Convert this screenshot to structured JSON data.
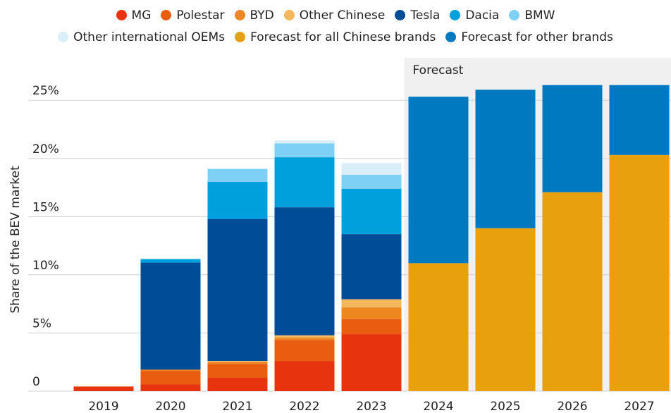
{
  "chart_data": {
    "type": "stacked_bar",
    "y_label": "Share of the BEV market",
    "annotation": "Forecast",
    "categories": [
      "2019",
      "2020",
      "2021",
      "2022",
      "2023",
      "2024",
      "2025",
      "2026",
      "2027"
    ],
    "series": [
      {
        "name": "MG",
        "color": "#e8340e",
        "values": [
          0.4,
          0.6,
          1.15,
          2.6,
          4.9,
          null,
          null,
          null,
          null
        ]
      },
      {
        "name": "Polestar",
        "color": "#e85d10",
        "values": [
          null,
          1.15,
          1.2,
          1.8,
          1.3,
          null,
          null,
          null,
          null
        ]
      },
      {
        "name": "BYD",
        "color": "#ec8722",
        "values": [
          null,
          0.1,
          0.15,
          0.2,
          1.0,
          null,
          null,
          null,
          null
        ]
      },
      {
        "name": "Other Chinese",
        "color": "#f4b85c",
        "values": [
          null,
          null,
          0.1,
          0.2,
          0.7,
          null,
          null,
          null,
          null
        ]
      },
      {
        "name": "Tesla",
        "color": "#004c97",
        "values": [
          null,
          9.2,
          12.2,
          11.0,
          5.6,
          null,
          null,
          null,
          null
        ]
      },
      {
        "name": "Dacia",
        "color": "#00a0dc",
        "values": [
          null,
          0.3,
          3.2,
          4.3,
          3.9,
          null,
          null,
          null,
          null
        ]
      },
      {
        "name": "BMW",
        "color": "#7fd0f5",
        "values": [
          null,
          null,
          1.1,
          1.2,
          1.2,
          null,
          null,
          null,
          null
        ]
      },
      {
        "name": "Other international OEMs",
        "color": "#d9eef8",
        "values": [
          null,
          null,
          null,
          0.25,
          1.0,
          null,
          null,
          null,
          null
        ]
      },
      {
        "name": "Forecast for all Chinese brands",
        "color": "#e8a00c",
        "values": [
          null,
          null,
          null,
          null,
          null,
          11.0,
          14.0,
          17.1,
          20.3
        ]
      },
      {
        "name": "Forecast for other brands",
        "color": "#0079c1",
        "values": [
          null,
          null,
          null,
          null,
          null,
          14.3,
          11.9,
          9.2,
          6.0
        ]
      }
    ],
    "ylim": [
      0,
      25.8
    ],
    "yticks": [
      0,
      {
        "value": 5,
        "label": "5%"
      },
      {
        "value": 10,
        "label": "10%"
      },
      {
        "value": 15,
        "label": "15%"
      },
      {
        "value": 20,
        "label": "20%"
      },
      {
        "value": 25,
        "label": "25%"
      }
    ],
    "grid": true
  }
}
